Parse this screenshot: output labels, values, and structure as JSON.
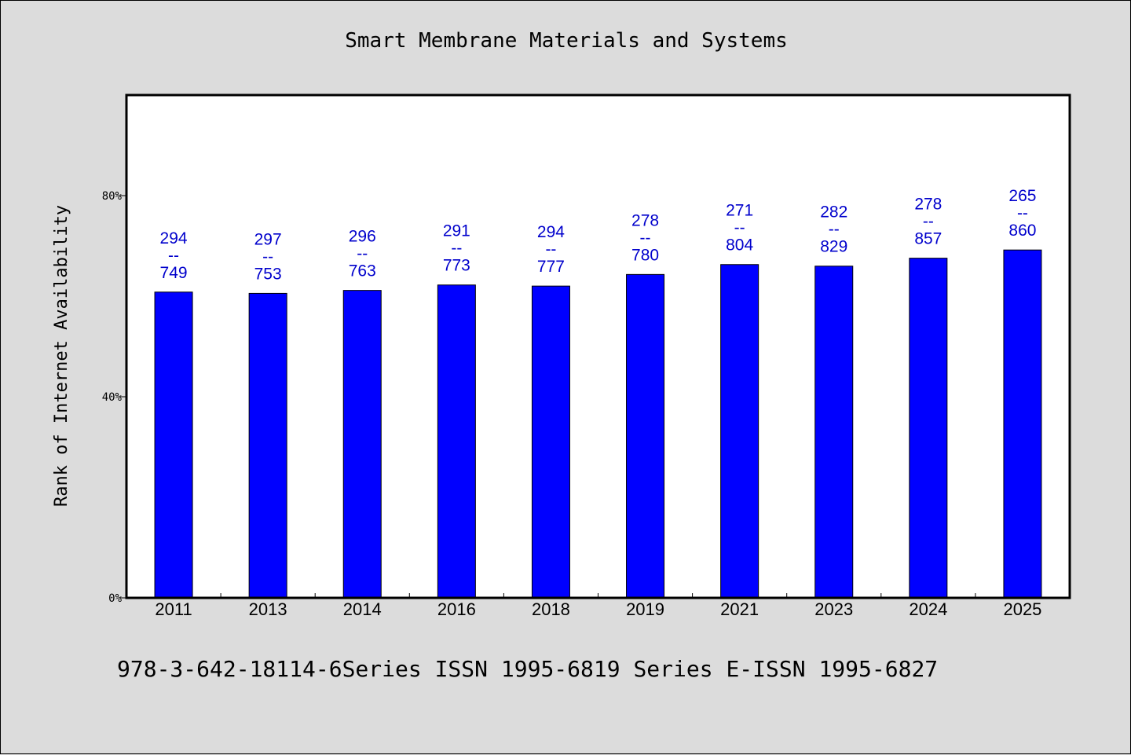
{
  "chart_data": {
    "type": "bar",
    "title": "Smart Membrane Materials and Systems",
    "ylabel": "Rank of Internet Availability",
    "xlabel": "",
    "categories": [
      "2011",
      "2013",
      "2014",
      "2016",
      "2018",
      "2019",
      "2021",
      "2023",
      "2024",
      "2025"
    ],
    "values": [
      0.6082,
      0.6056,
      0.6115,
      0.6223,
      0.6201,
      0.6432,
      0.6629,
      0.6598,
      0.6756,
      0.6919
    ],
    "data_labels": [
      {
        "top": "294",
        "mid": "--",
        "bottom": "749"
      },
      {
        "top": "297",
        "mid": "--",
        "bottom": "753"
      },
      {
        "top": "296",
        "mid": "--",
        "bottom": "763"
      },
      {
        "top": "291",
        "mid": "--",
        "bottom": "773"
      },
      {
        "top": "294",
        "mid": "--",
        "bottom": "777"
      },
      {
        "top": "278",
        "mid": "--",
        "bottom": "780"
      },
      {
        "top": "271",
        "mid": "--",
        "bottom": "804"
      },
      {
        "top": "282",
        "mid": "--",
        "bottom": "829"
      },
      {
        "top": "278",
        "mid": "--",
        "bottom": "857"
      },
      {
        "top": "265",
        "mid": "--",
        "bottom": "860"
      }
    ],
    "ylim": [
      0,
      1
    ],
    "yticks": [
      0,
      0.4,
      0.8
    ],
    "ytick_labels": [
      "0%",
      "40%",
      "80%"
    ],
    "grid": false,
    "colors": {
      "bar": "#0000ff",
      "label": "#0000cc",
      "background": "#dcdcdc",
      "plot_bg": "#ffffff"
    }
  },
  "footer": "978-3-642-18114-6Series ISSN 1995-6819 Series E-ISSN 1995-6827"
}
